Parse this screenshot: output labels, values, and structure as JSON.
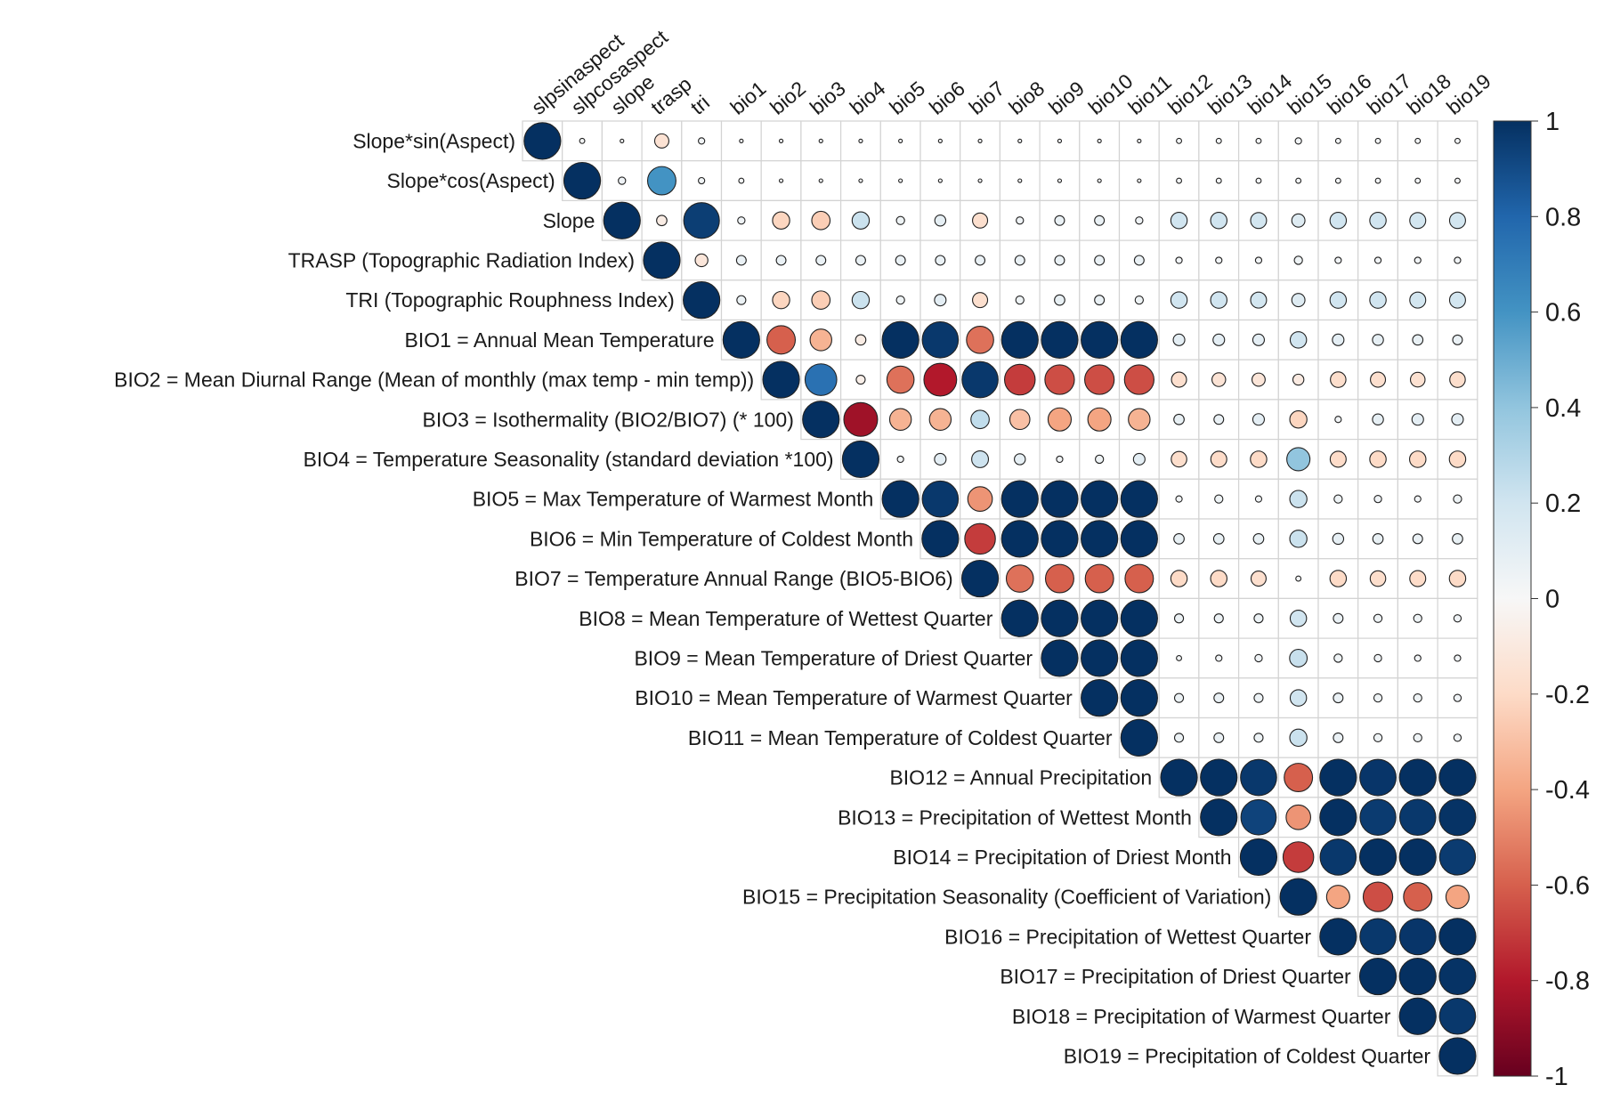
{
  "chart_data": {
    "type": "heatmap",
    "style": "correlation-circle-upper-triangle",
    "columns": [
      "slpsinaspect",
      "slpcosaspect",
      "slope",
      "trasp",
      "tri",
      "bio1",
      "bio2",
      "bio3",
      "bio4",
      "bio5",
      "bio6",
      "bio7",
      "bio8",
      "bio9",
      "bio10",
      "bio11",
      "bio12",
      "bio13",
      "bio14",
      "bio15",
      "bio16",
      "bio17",
      "bio18",
      "bio19"
    ],
    "rows": [
      "Slope*sin(Aspect)",
      "Slope*cos(Aspect)",
      "Slope",
      "TRASP (Topographic  Radiation Index)",
      "TRI (Topographic Rouphness Index)",
      "BIO1 = Annual Mean Temperature",
      "BIO2 = Mean Diurnal Range (Mean of monthly (max temp - min temp))",
      "BIO3 = Isothermality (BIO2/BIO7) (* 100)",
      "BIO4 = Temperature Seasonality (standard deviation *100)",
      "BIO5 = Max Temperature of Warmest Month",
      "BIO6 = Min Temperature of Coldest Month",
      "BIO7 = Temperature Annual Range (BIO5-BIO6)",
      "BIO8 = Mean Temperature of Wettest Quarter",
      "BIO9 = Mean Temperature of Driest Quarter",
      "BIO10 = Mean Temperature of Warmest Quarter",
      "BIO11 = Mean Temperature of Coldest Quarter",
      "BIO12 = Annual Precipitation",
      "BIO13 = Precipitation of Wettest Month",
      "BIO14 = Precipitation of Driest Month",
      "BIO15 = Precipitation Seasonality (Coefficient of Variation)",
      "BIO16 = Precipitation of Wettest Quarter",
      "BIO17 = Precipitation of Driest Quarter",
      "BIO18 = Precipitation of Warmest Quarter",
      "BIO19 = Precipitation of Coldest Quarter"
    ],
    "values": [
      [
        1.0,
        0.02,
        0.01,
        -0.15,
        0.03,
        0.01,
        0.01,
        0.01,
        0.01,
        0.01,
        0.01,
        0.01,
        0.01,
        0.01,
        0.01,
        0.01,
        0.02,
        0.02,
        0.02,
        0.03,
        0.02,
        0.02,
        0.02,
        0.02
      ],
      [
        1.0,
        0.04,
        0.6,
        0.03,
        0.02,
        0.01,
        0.01,
        0.01,
        0.01,
        0.01,
        0.01,
        0.01,
        0.01,
        0.01,
        0.01,
        0.02,
        0.02,
        0.02,
        0.02,
        0.02,
        0.02,
        0.02,
        0.02
      ],
      [
        1.0,
        -0.08,
        0.95,
        0.04,
        -0.22,
        -0.25,
        0.22,
        0.05,
        0.09,
        -0.17,
        0.04,
        0.07,
        0.07,
        0.04,
        0.2,
        0.2,
        0.19,
        0.13,
        0.2,
        0.2,
        0.19,
        0.19
      ],
      [
        1.0,
        -0.12,
        0.07,
        0.07,
        0.07,
        0.07,
        0.07,
        0.07,
        0.07,
        0.07,
        0.07,
        0.07,
        0.07,
        0.03,
        0.03,
        0.03,
        0.05,
        0.03,
        0.03,
        0.03,
        0.03
      ],
      [
        1.0,
        0.06,
        -0.22,
        -0.25,
        0.22,
        0.05,
        0.1,
        -0.17,
        0.05,
        0.08,
        0.07,
        0.05,
        0.2,
        0.2,
        0.19,
        0.13,
        0.2,
        0.2,
        0.19,
        0.19
      ],
      [
        1.0,
        -0.6,
        -0.35,
        -0.08,
        1.0,
        0.97,
        -0.55,
        1.0,
        1.0,
        1.0,
        1.0,
        0.1,
        0.1,
        0.1,
        0.2,
        0.1,
        0.09,
        0.08,
        0.07
      ],
      [
        1.0,
        0.75,
        -0.06,
        -0.55,
        -0.8,
        0.97,
        -0.7,
        -0.65,
        -0.65,
        -0.65,
        -0.17,
        -0.14,
        -0.13,
        -0.09,
        -0.18,
        -0.17,
        -0.16,
        -0.18
      ],
      [
        1.0,
        -0.85,
        -0.35,
        -0.35,
        0.25,
        -0.3,
        -0.4,
        -0.4,
        -0.35,
        0.08,
        0.07,
        0.1,
        -0.22,
        0.03,
        0.09,
        0.1,
        0.1
      ],
      [
        1.0,
        0.03,
        0.1,
        0.21,
        0.09,
        0.03,
        0.05,
        0.1,
        -0.18,
        -0.19,
        -0.2,
        0.4,
        -0.19,
        -0.2,
        -0.2,
        -0.2
      ],
      [
        1.0,
        0.97,
        -0.45,
        1.0,
        1.0,
        1.0,
        1.0,
        0.03,
        0.05,
        0.03,
        0.22,
        0.05,
        0.04,
        0.03,
        0.05
      ],
      [
        1.0,
        -0.7,
        1.0,
        1.0,
        1.0,
        1.0,
        0.08,
        0.08,
        0.08,
        0.22,
        0.09,
        0.08,
        0.07,
        0.08
      ],
      [
        1.0,
        -0.55,
        -0.6,
        -0.6,
        -0.6,
        -0.2,
        -0.2,
        -0.17,
        0.02,
        -0.2,
        -0.18,
        -0.19,
        -0.2
      ],
      [
        1.0,
        1.0,
        1.0,
        1.0,
        0.06,
        0.06,
        0.06,
        0.2,
        0.07,
        0.05,
        0.05,
        0.04
      ],
      [
        1.0,
        1.0,
        1.0,
        0.02,
        0.03,
        0.04,
        0.23,
        0.05,
        0.04,
        0.03,
        0.03
      ],
      [
        1.0,
        1.0,
        0.06,
        0.07,
        0.06,
        0.2,
        0.07,
        0.05,
        0.05,
        0.04
      ],
      [
        1.0,
        0.06,
        0.07,
        0.06,
        0.22,
        0.07,
        0.05,
        0.05,
        0.04
      ],
      [
        1.0,
        1.0,
        0.97,
        -0.6,
        1.0,
        0.98,
        1.0,
        1.0
      ],
      [
        1.0,
        0.93,
        -0.45,
        1.0,
        0.96,
        0.97,
        0.99
      ],
      [
        1.0,
        -0.7,
        0.97,
        1.0,
        1.0,
        0.96
      ],
      [
        1.0,
        -0.4,
        -0.65,
        -0.6,
        -0.4
      ],
      [
        1.0,
        0.97,
        0.98,
        1.0
      ],
      [
        1.0,
        1.0,
        0.99
      ],
      [
        1.0,
        0.97
      ],
      [
        1.0
      ]
    ],
    "legend": {
      "position": "right",
      "ticks": [
        "1",
        "0.8",
        "0.6",
        "0.4",
        "0.2",
        "0",
        "-0.2",
        "-0.4",
        "-0.6",
        "-0.8",
        "-1"
      ],
      "range": [
        -1,
        1
      ]
    },
    "colors": {
      "neg1": "#67001f",
      "neg08": "#b2182b",
      "neg06": "#d6604d",
      "neg04": "#f4a582",
      "neg02": "#fddbc7",
      "zero": "#f7f7f7",
      "pos02": "#d1e5f0",
      "pos04": "#92c5de",
      "pos06": "#4393c3",
      "pos08": "#2166ac",
      "pos1": "#053061"
    }
  }
}
